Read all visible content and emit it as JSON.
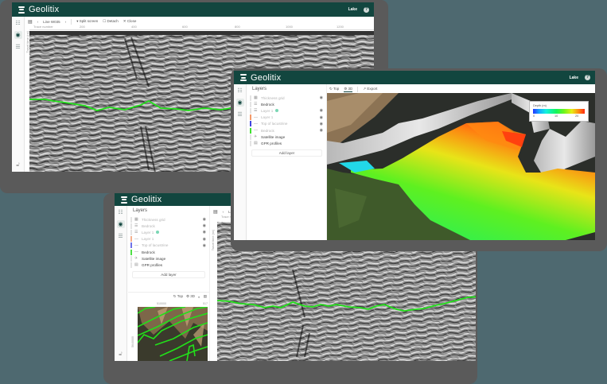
{
  "app": {
    "brand": "Geolitix",
    "user": "Lake",
    "help_icon": "?"
  },
  "colors": {
    "appbar": "#12463f",
    "background": "#4e6970",
    "frame": "#5a5a5a",
    "horizon_line": "#22e01a"
  },
  "window_profile": {
    "toolbar": {
      "menu_icon": "menu-icon",
      "prev": "‹",
      "line_name": "Line W035",
      "next": "›",
      "split_screen": "Split screen",
      "detach": "Detach",
      "close": "Close"
    },
    "x_axis": {
      "label": "Trace number",
      "ticks": [
        "200",
        "400",
        "600",
        "800",
        "1000",
        "1200"
      ]
    },
    "y_axis": {
      "label": "Travel time (ns)",
      "ticks": [
        "200",
        "300",
        "400",
        "500",
        "600"
      ]
    },
    "rail_icons": [
      "layout-icon",
      "layers-icon",
      "settings-icon"
    ]
  },
  "window_3d": {
    "layers_title": "Layers",
    "toolbar": {
      "top": "Top",
      "three_d": "3D",
      "export": "Export"
    },
    "layers": [
      {
        "label": "Thickness grid",
        "dim": true,
        "eye": true,
        "color": "#e4e4e4",
        "icon": "grid-icon"
      },
      {
        "label": "Bedrock",
        "dim": false,
        "eye": false,
        "color": "#e4e4e4",
        "icon": "surface-icon"
      },
      {
        "label": "Layer 1",
        "dim": true,
        "eye": true,
        "color": "#e4e4e4",
        "icon": "surface-icon",
        "dot": true
      },
      {
        "label": "Layer 1",
        "dim": true,
        "eye": true,
        "color": "#f39a6b",
        "icon": "line-icon"
      },
      {
        "label": "Top of lacustrine",
        "dim": true,
        "eye": true,
        "color": "#4147e0",
        "icon": "line-icon"
      },
      {
        "label": "Bedrock",
        "dim": true,
        "eye": true,
        "color": "#3ee12f",
        "icon": "line-icon"
      },
      {
        "label": "Satellite image",
        "dim": false,
        "eye": false,
        "color": "#e4e4e4",
        "icon": "satellite-icon"
      },
      {
        "label": "GPR profiles",
        "dim": false,
        "eye": false,
        "color": "#e4e4e4",
        "icon": "profiles-icon"
      }
    ],
    "add_layer": "Add layer",
    "legend": {
      "title": "Depth (m)",
      "ticks": [
        "0",
        "10",
        "20"
      ]
    }
  },
  "window_split": {
    "layers_title": "Layers",
    "layers": [
      {
        "label": "Thickness grid",
        "dim": true,
        "eye": true,
        "color": "#e4e4e4",
        "icon": "grid-icon"
      },
      {
        "label": "Bedrock",
        "dim": true,
        "eye": true,
        "color": "#e4e4e4",
        "icon": "surface-icon"
      },
      {
        "label": "Layer 1",
        "dim": true,
        "eye": true,
        "color": "#e4e4e4",
        "icon": "surface-icon",
        "dot": true
      },
      {
        "label": "Layer 1",
        "dim": true,
        "eye": true,
        "color": "#f5b08e",
        "icon": "line-icon"
      },
      {
        "label": "Top of lacustrine",
        "dim": true,
        "eye": true,
        "color": "#6f72e8",
        "icon": "line-icon"
      },
      {
        "label": "Bedrock",
        "dim": false,
        "eye": false,
        "color": "#4fe046",
        "icon": "line-icon"
      },
      {
        "label": "Satellite image",
        "dim": false,
        "eye": false,
        "color": "#e4e4e4",
        "icon": "satellite-icon"
      },
      {
        "label": "GPR profiles",
        "dim": false,
        "eye": false,
        "color": "#e4e4e4",
        "icon": "profiles-icon"
      }
    ],
    "add_layer": "Add layer",
    "map_toolbar": {
      "top": "Top",
      "three_d": "3D"
    },
    "map_axis": {
      "x_tick": "510000",
      "x_tick_right": "517",
      "y_tick": "5640000"
    },
    "profile_toolbar": {
      "line_name": "Line",
      "x_label": "Trace number",
      "y_label": "Travel time (ns)"
    }
  }
}
